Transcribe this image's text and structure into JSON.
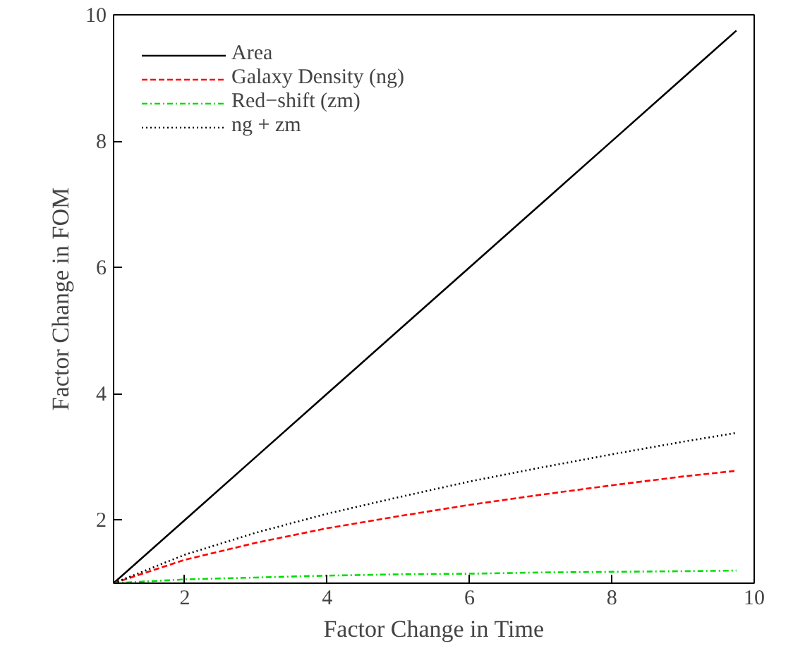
{
  "chart_data": {
    "type": "line",
    "xlabel": "Factor Change in Time",
    "ylabel": "Factor Change in FOM",
    "x": [
      1,
      2,
      3,
      4,
      5,
      6,
      7,
      8,
      9,
      9.75
    ],
    "series": [
      {
        "name": "Area",
        "color": "#000000",
        "line_style": "solid",
        "values": [
          1,
          2,
          3,
          4,
          5,
          6,
          7,
          8,
          9,
          9.75
        ]
      },
      {
        "name": "Galaxy Density (ng)",
        "color": "#ff0000",
        "line_style": "dashed",
        "values": [
          1,
          1.37,
          1.64,
          1.87,
          2.06,
          2.24,
          2.4,
          2.55,
          2.69,
          2.78
        ]
      },
      {
        "name": "Red−shift (zm)",
        "color": "#00dd00",
        "line_style": "dashdot",
        "values": [
          1,
          1.06,
          1.09,
          1.12,
          1.14,
          1.15,
          1.17,
          1.18,
          1.19,
          1.2
        ]
      },
      {
        "name": "ng + zm",
        "color": "#000000",
        "line_style": "dotted",
        "values": [
          1,
          1.45,
          1.8,
          2.1,
          2.36,
          2.61,
          2.83,
          3.04,
          3.24,
          3.38
        ]
      }
    ],
    "xlim": [
      1,
      10
    ],
    "ylim": [
      1,
      10
    ],
    "xticks": [
      2,
      4,
      6,
      8,
      10
    ],
    "yticks": [
      2,
      4,
      6,
      8,
      10
    ],
    "grid": false,
    "legend": "top left",
    "marker": "none"
  }
}
